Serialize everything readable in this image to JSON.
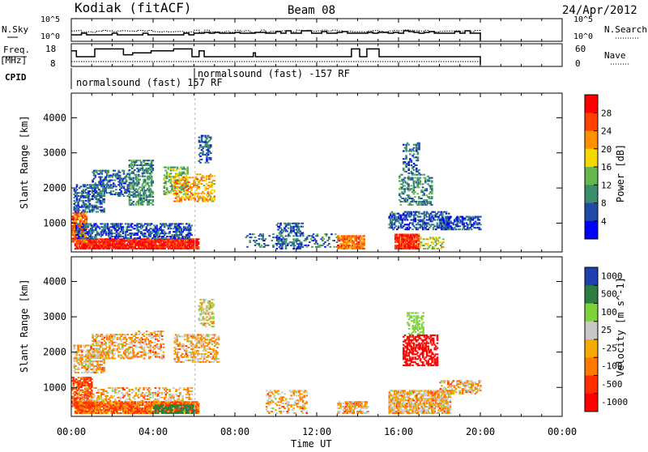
{
  "header": {
    "station": "Kodiak (fitACF)",
    "beam": "Beam 08",
    "date": "24/Apr/2012"
  },
  "status_panels": {
    "nsky": {
      "label": "N.Sky",
      "ticks": [
        "10^5",
        "10^0"
      ]
    },
    "nsearch": {
      "label": "N.Search",
      "ticks": [
        "10^5",
        "10^0"
      ]
    },
    "freq": {
      "label_line1": "Freq.",
      "label_line2": "[MHz]",
      "ticks": [
        "18",
        "8"
      ],
      "steps": [
        [
          0.0,
          16
        ],
        [
          0.25,
          13
        ],
        [
          1.15,
          17
        ],
        [
          2.55,
          14
        ],
        [
          3.0,
          15
        ],
        [
          3.9,
          16
        ],
        [
          5.0,
          17
        ],
        [
          5.9,
          13
        ],
        [
          6.25,
          16
        ],
        [
          6.5,
          13
        ],
        [
          8.9,
          15
        ],
        [
          9.0,
          13
        ],
        [
          13.7,
          17
        ],
        [
          14.1,
          13
        ],
        [
          14.45,
          17
        ],
        [
          15.05,
          13
        ],
        [
          20.0,
          13
        ]
      ]
    },
    "nave": {
      "label": "Nave",
      "ticks": [
        "60",
        "0"
      ]
    },
    "cpid": {
      "label": "CPID",
      "programs": [
        {
          "text": "normalsound (fast) 157 RF",
          "start": 0.0
        },
        {
          "text": "normalsound (fast) -157 RF",
          "start": 6.05
        }
      ]
    }
  },
  "time_axis": {
    "label": "Time UT",
    "ticks": [
      "00:00",
      "04:00",
      "08:00",
      "12:00",
      "16:00",
      "20:00",
      "00:00"
    ]
  },
  "colors": {
    "power": [
      "#0000ff",
      "#1e4ba8",
      "#3a8e6a",
      "#66b74e",
      "#f5d800",
      "#ff9100",
      "#ff4200",
      "#ff0000"
    ],
    "velocity": [
      "#1f3fb0",
      "#2e7d40",
      "#7fd33a",
      "#c8c8c8",
      "#f5aa00",
      "#ff7800",
      "#ff2e00",
      "#ff0000"
    ]
  },
  "chart_data": [
    {
      "type": "heatmap",
      "name": "power",
      "ylabel": "Slant Range [km]",
      "xlabel": "Time UT",
      "xlim": [
        0,
        24
      ],
      "ylim": [
        180,
        4700
      ],
      "yticks": [
        "1000",
        "2000",
        "3000",
        "4000"
      ],
      "colorbar": {
        "label": "Power [dB]",
        "ticks": [
          "28",
          "24",
          "20",
          "16",
          "12",
          "8",
          "4"
        ],
        "range": [
          0,
          32
        ]
      },
      "regions": [
        {
          "t0": 0.15,
          "t1": 6.2,
          "r0": 250,
          "r1": 550,
          "v": 29,
          "d": 0.9
        },
        {
          "t0": 0.0,
          "t1": 0.7,
          "r0": 450,
          "r1": 1300,
          "v": 24,
          "d": 0.7
        },
        {
          "t0": 0.2,
          "t1": 5.9,
          "r0": 550,
          "r1": 1000,
          "v": 6,
          "d": 0.5
        },
        {
          "t0": 0.1,
          "t1": 1.6,
          "r0": 1300,
          "r1": 2100,
          "v": 7,
          "d": 0.5
        },
        {
          "t0": 1.0,
          "t1": 2.8,
          "r0": 1750,
          "r1": 2500,
          "v": 7,
          "d": 0.45
        },
        {
          "t0": 2.8,
          "t1": 4.0,
          "r0": 1500,
          "r1": 2800,
          "v": 10,
          "d": 0.5
        },
        {
          "t0": 4.5,
          "t1": 5.7,
          "r0": 1800,
          "r1": 2600,
          "v": 14,
          "d": 0.5
        },
        {
          "t0": 5.0,
          "t1": 6.0,
          "r0": 1600,
          "r1": 2300,
          "v": 22,
          "d": 0.4
        },
        {
          "t0": 6.0,
          "t1": 7.0,
          "r0": 1600,
          "r1": 2400,
          "v": 20,
          "d": 0.4
        },
        {
          "t0": 6.2,
          "t1": 6.8,
          "r0": 2700,
          "r1": 3500,
          "v": 7,
          "d": 0.4
        },
        {
          "t0": 8.5,
          "t1": 13.0,
          "r0": 300,
          "r1": 700,
          "v": 8,
          "d": 0.2
        },
        {
          "t0": 10.0,
          "t1": 11.3,
          "r0": 250,
          "r1": 1000,
          "v": 7,
          "d": 0.35
        },
        {
          "t0": 13.0,
          "t1": 14.3,
          "r0": 250,
          "r1": 650,
          "v": 24,
          "d": 0.75
        },
        {
          "t0": 15.8,
          "t1": 17.0,
          "r0": 250,
          "r1": 700,
          "v": 28,
          "d": 0.85
        },
        {
          "t0": 17.0,
          "t1": 18.2,
          "r0": 250,
          "r1": 600,
          "v": 16,
          "d": 0.45
        },
        {
          "t0": 15.5,
          "t1": 18.5,
          "r0": 800,
          "r1": 1300,
          "v": 6,
          "d": 0.5
        },
        {
          "t0": 18.0,
          "t1": 20.0,
          "r0": 800,
          "r1": 1200,
          "v": 6,
          "d": 0.5
        },
        {
          "t0": 16.0,
          "t1": 17.6,
          "r0": 1500,
          "r1": 2400,
          "v": 10,
          "d": 0.4
        },
        {
          "t0": 16.2,
          "t1": 17.0,
          "r0": 2400,
          "r1": 3300,
          "v": 7,
          "d": 0.35
        }
      ]
    },
    {
      "type": "heatmap",
      "name": "velocity",
      "ylabel": "Slant Range [km]",
      "xlabel": "Time UT",
      "xlim": [
        0,
        24
      ],
      "ylim": [
        180,
        4700
      ],
      "yticks": [
        "1000",
        "2000",
        "3000",
        "4000"
      ],
      "colorbar": {
        "label": "Velocity [m s^-1]",
        "ticks": [
          "1000",
          "500",
          "100",
          "25",
          "-25",
          "-100",
          "-500",
          "-1000"
        ],
        "range": [
          -1200,
          1200
        ]
      },
      "regions": [
        {
          "t0": 0.15,
          "t1": 6.2,
          "r0": 250,
          "r1": 600,
          "v": -90,
          "d": 0.85
        },
        {
          "t0": 0.0,
          "t1": 1.0,
          "r0": 400,
          "r1": 1300,
          "v": -150,
          "d": 0.6
        },
        {
          "t0": 4.0,
          "t1": 6.0,
          "r0": 250,
          "r1": 500,
          "v": 600,
          "d": 0.55
        },
        {
          "t0": 0.2,
          "t1": 5.9,
          "r0": 600,
          "r1": 1000,
          "v": 0,
          "d": 0.35
        },
        {
          "t0": 0.1,
          "t1": 1.6,
          "r0": 1400,
          "r1": 2200,
          "v": 0,
          "d": 0.5
        },
        {
          "t0": 1.0,
          "t1": 3.0,
          "r0": 1800,
          "r1": 2500,
          "v": 5,
          "d": 0.45
        },
        {
          "t0": 3.0,
          "t1": 4.5,
          "r0": 1800,
          "r1": 2600,
          "v": -10,
          "d": 0.4
        },
        {
          "t0": 5.0,
          "t1": 7.2,
          "r0": 1700,
          "r1": 2500,
          "v": 0,
          "d": 0.4
        },
        {
          "t0": 6.2,
          "t1": 6.9,
          "r0": 2700,
          "r1": 3500,
          "v": 60,
          "d": 0.4
        },
        {
          "t0": 9.5,
          "t1": 11.5,
          "r0": 250,
          "r1": 900,
          "v": 0,
          "d": 0.3
        },
        {
          "t0": 13.0,
          "t1": 14.5,
          "r0": 250,
          "r1": 600,
          "v": 0,
          "d": 0.6
        },
        {
          "t0": 15.5,
          "t1": 18.5,
          "r0": 250,
          "r1": 900,
          "v": 0,
          "d": 0.7
        },
        {
          "t0": 18.0,
          "t1": 20.0,
          "r0": 800,
          "r1": 1200,
          "v": 0,
          "d": 0.45
        },
        {
          "t0": 16.2,
          "t1": 17.9,
          "r0": 1600,
          "r1": 2500,
          "v": -600,
          "d": 0.55
        },
        {
          "t0": 16.4,
          "t1": 17.2,
          "r0": 2500,
          "r1": 3100,
          "v": 200,
          "d": 0.45
        }
      ]
    }
  ]
}
